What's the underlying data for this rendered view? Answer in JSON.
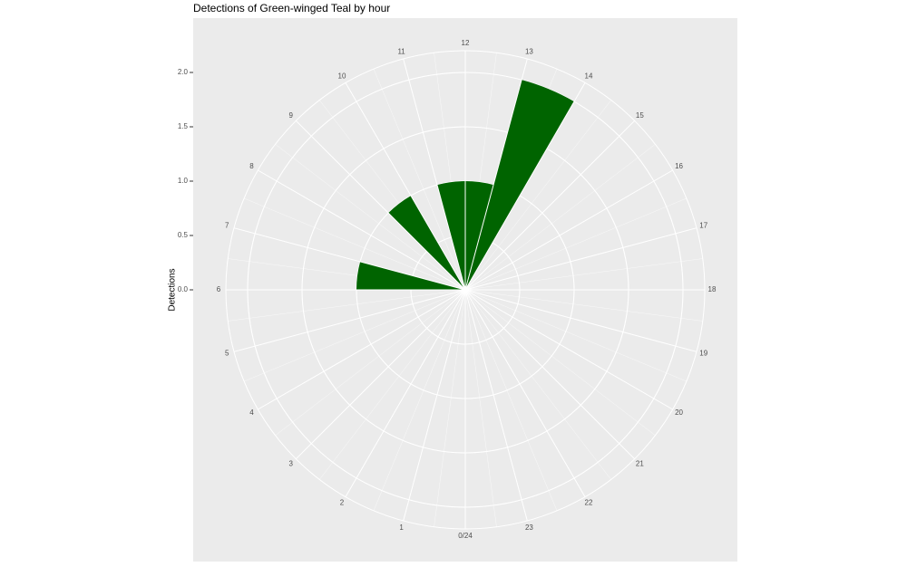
{
  "chart_data": {
    "type": "polar_bar",
    "title": "Detections of Green-winged Teal by hour",
    "y_label": "Detections",
    "categories": [
      "0/24",
      "1",
      "2",
      "3",
      "4",
      "5",
      "6",
      "7",
      "8",
      "9",
      "10",
      "11",
      "12",
      "13",
      "14",
      "15",
      "16",
      "17",
      "18",
      "19",
      "20",
      "21",
      "22",
      "23"
    ],
    "values": [
      0,
      0,
      0,
      0,
      0,
      0,
      1,
      0,
      0,
      1,
      0,
      1,
      1,
      2,
      0,
      0,
      0,
      0,
      0,
      0,
      0,
      0,
      0,
      0
    ],
    "color": "#006400",
    "ylim": [
      0,
      2.2
    ],
    "yticks": [
      {
        "value": 0,
        "label": "0.0"
      },
      0.5,
      {
        "value": 1,
        "label": "1.0"
      },
      1.5,
      {
        "value": 2,
        "label": "2.0"
      }
    ],
    "grid": true
  }
}
